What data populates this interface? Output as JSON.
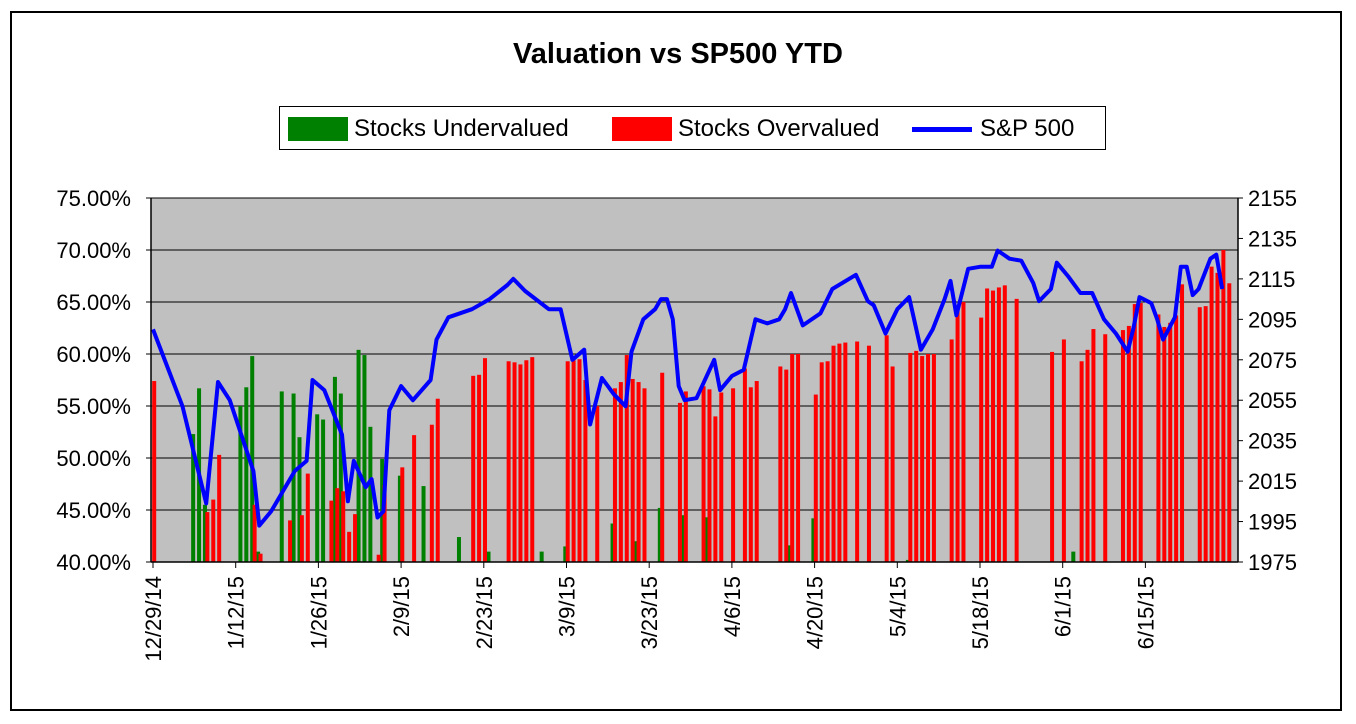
{
  "chart_data": {
    "type": "bar",
    "title": "Valuation vs SP500 YTD",
    "legend": {
      "position": "top",
      "items": [
        {
          "label": "Stocks Undervalued",
          "color": "#008000"
        },
        {
          "label": "Stocks Overvalued",
          "color": "#ff0000"
        },
        {
          "label": "S&P 500",
          "color": "#0000ff"
        }
      ]
    },
    "plot_background": "#c0c0c0",
    "grid": true,
    "y_left": {
      "ticks": [
        "40.00%",
        "45.00%",
        "50.00%",
        "55.00%",
        "60.00%",
        "65.00%",
        "70.00%",
        "75.00%"
      ],
      "range": [
        40,
        75
      ]
    },
    "y_right": {
      "ticks": [
        "1975",
        "1995",
        "2015",
        "2035",
        "2055",
        "2075",
        "2095",
        "2115",
        "2135",
        "2155"
      ],
      "range": [
        1975,
        2155
      ]
    },
    "x_axis": {
      "ticks": [
        "12/29/14",
        "1/12/15",
        "1/26/15",
        "2/9/15",
        "2/23/15",
        "3/9/15",
        "3/23/15",
        "4/6/15",
        "4/20/15",
        "5/4/15",
        "5/18/15",
        "6/1/15",
        "6/15/15"
      ],
      "start_date": "2014-12-29",
      "last_day": 183
    },
    "series": [
      {
        "name": "Stocks Undervalued",
        "color": "#008000",
        "points": [
          [
            7,
            52.3
          ],
          [
            8,
            56.7
          ],
          [
            9,
            45.5
          ],
          [
            15,
            55.0
          ],
          [
            16,
            56.8
          ],
          [
            17,
            59.8
          ],
          [
            18,
            41.0
          ],
          [
            22,
            56.4
          ],
          [
            24,
            56.2
          ],
          [
            25,
            52.0
          ],
          [
            28,
            54.2
          ],
          [
            29,
            53.7
          ],
          [
            31,
            57.8
          ],
          [
            32,
            56.2
          ],
          [
            35,
            60.4
          ],
          [
            36,
            59.9
          ],
          [
            37,
            53.0
          ],
          [
            39,
            49.9
          ],
          [
            42,
            48.3
          ],
          [
            46,
            47.3
          ],
          [
            52,
            42.4
          ],
          [
            57,
            41.0
          ],
          [
            66,
            41.0
          ],
          [
            70,
            41.5
          ],
          [
            78,
            43.7
          ],
          [
            82,
            42.0
          ],
          [
            86,
            45.2
          ],
          [
            90,
            44.5
          ],
          [
            94,
            44.3
          ],
          [
            108,
            41.6
          ],
          [
            112,
            44.2
          ],
          [
            128,
            40.2
          ],
          [
            156,
            41.0
          ]
        ]
      },
      {
        "name": "Stocks Overvalued",
        "color": "#ff0000",
        "points": [
          [
            0,
            57.4
          ],
          [
            9,
            44.8
          ],
          [
            10,
            46.0
          ],
          [
            11,
            50.3
          ],
          [
            17,
            45.5
          ],
          [
            18,
            40.8
          ],
          [
            23,
            44.0
          ],
          [
            25,
            44.5
          ],
          [
            26,
            48.5
          ],
          [
            30,
            45.9
          ],
          [
            31,
            47.1
          ],
          [
            32,
            46.8
          ],
          [
            33,
            42.9
          ],
          [
            34,
            44.6
          ],
          [
            38,
            40.7
          ],
          [
            39,
            47.4
          ],
          [
            42,
            49.1
          ],
          [
            44,
            52.2
          ],
          [
            47,
            53.2
          ],
          [
            48,
            55.7
          ],
          [
            54,
            57.9
          ],
          [
            55,
            58.0
          ],
          [
            56,
            59.6
          ],
          [
            60,
            59.3
          ],
          [
            61,
            59.2
          ],
          [
            62,
            59.0
          ],
          [
            63,
            59.4
          ],
          [
            64,
            59.7
          ],
          [
            70,
            59.3
          ],
          [
            71,
            59.4
          ],
          [
            72,
            59.5
          ],
          [
            73,
            57.5
          ],
          [
            75,
            55.0
          ],
          [
            78,
            56.7
          ],
          [
            79,
            57.3
          ],
          [
            80,
            59.9
          ],
          [
            81,
            57.6
          ],
          [
            82,
            57.3
          ],
          [
            83,
            56.7
          ],
          [
            86,
            58.2
          ],
          [
            89,
            55.3
          ],
          [
            90,
            56.4
          ],
          [
            93,
            56.9
          ],
          [
            94,
            56.6
          ],
          [
            95,
            54.0
          ],
          [
            96,
            56.3
          ],
          [
            98,
            56.7
          ],
          [
            100,
            58.6
          ],
          [
            101,
            56.8
          ],
          [
            102,
            57.4
          ],
          [
            106,
            58.8
          ],
          [
            107,
            58.5
          ],
          [
            108,
            60.0
          ],
          [
            109,
            60.0
          ],
          [
            112,
            56.1
          ],
          [
            113,
            59.2
          ],
          [
            114,
            59.3
          ],
          [
            115,
            60.8
          ],
          [
            116,
            61.0
          ],
          [
            117,
            61.1
          ],
          [
            119,
            61.2
          ],
          [
            121,
            60.8
          ],
          [
            124,
            61.8
          ],
          [
            125,
            58.8
          ],
          [
            128,
            60.1
          ],
          [
            129,
            60.3
          ],
          [
            130,
            59.8
          ],
          [
            131,
            60.0
          ],
          [
            132,
            60.0
          ],
          [
            135,
            61.4
          ],
          [
            136,
            64.6
          ],
          [
            137,
            65.0
          ],
          [
            140,
            63.5
          ],
          [
            141,
            66.3
          ],
          [
            142,
            66.1
          ],
          [
            143,
            66.4
          ],
          [
            144,
            66.6
          ],
          [
            146,
            65.3
          ],
          [
            152,
            60.2
          ],
          [
            154,
            61.4
          ],
          [
            157,
            59.3
          ],
          [
            158,
            60.4
          ],
          [
            159,
            62.4
          ],
          [
            161,
            61.9
          ],
          [
            164,
            62.3
          ],
          [
            165,
            62.7
          ],
          [
            166,
            64.8
          ],
          [
            167,
            64.9
          ],
          [
            170,
            63.8
          ],
          [
            171,
            62.6
          ],
          [
            172,
            63.0
          ],
          [
            173,
            63.7
          ],
          [
            174,
            66.7
          ],
          [
            177,
            64.5
          ],
          [
            178,
            64.6
          ],
          [
            179,
            68.4
          ],
          [
            180,
            67.8
          ],
          [
            181,
            70.0
          ],
          [
            182,
            66.8
          ]
        ]
      },
      {
        "name": "S&P 500",
        "color": "#0000ff",
        "points": [
          [
            0,
            2090
          ],
          [
            5,
            2052
          ],
          [
            9,
            2004
          ],
          [
            11,
            2064
          ],
          [
            13,
            2055
          ],
          [
            17,
            2020
          ],
          [
            18,
            1993
          ],
          [
            20,
            2000
          ],
          [
            24,
            2020
          ],
          [
            26,
            2025
          ],
          [
            27,
            2065
          ],
          [
            29,
            2060
          ],
          [
            32,
            2038
          ],
          [
            33,
            2005
          ],
          [
            34,
            2025
          ],
          [
            36,
            2012
          ],
          [
            37,
            2016
          ],
          [
            38,
            1997
          ],
          [
            39,
            2000
          ],
          [
            40,
            2050
          ],
          [
            42,
            2062
          ],
          [
            44,
            2055
          ],
          [
            47,
            2065
          ],
          [
            48,
            2085
          ],
          [
            50,
            2096
          ],
          [
            54,
            2100
          ],
          [
            57,
            2105
          ],
          [
            60,
            2112
          ],
          [
            61,
            2115
          ],
          [
            63,
            2109
          ],
          [
            67,
            2100
          ],
          [
            69,
            2100
          ],
          [
            71,
            2075
          ],
          [
            73,
            2080
          ],
          [
            74,
            2043
          ],
          [
            76,
            2066
          ],
          [
            78,
            2058
          ],
          [
            80,
            2052
          ],
          [
            81,
            2079
          ],
          [
            83,
            2095
          ],
          [
            85,
            2100
          ],
          [
            86,
            2105
          ],
          [
            87,
            2105
          ],
          [
            88,
            2095
          ],
          [
            89,
            2062
          ],
          [
            90,
            2055
          ],
          [
            92,
            2056
          ],
          [
            95,
            2075
          ],
          [
            96,
            2060
          ],
          [
            98,
            2067
          ],
          [
            100,
            2070
          ],
          [
            102,
            2095
          ],
          [
            104,
            2093
          ],
          [
            106,
            2095
          ],
          [
            107,
            2100
          ],
          [
            108,
            2108
          ],
          [
            110,
            2092
          ],
          [
            111,
            2094
          ],
          [
            113,
            2098
          ],
          [
            115,
            2110
          ],
          [
            119,
            2117
          ],
          [
            121,
            2104
          ],
          [
            122,
            2102
          ],
          [
            124,
            2088
          ],
          [
            126,
            2100
          ],
          [
            128,
            2106
          ],
          [
            130,
            2080
          ],
          [
            132,
            2090
          ],
          [
            134,
            2105
          ],
          [
            135,
            2114
          ],
          [
            136,
            2097
          ],
          [
            138,
            2120
          ],
          [
            140,
            2121
          ],
          [
            142,
            2121
          ],
          [
            143,
            2129
          ],
          [
            144,
            2127
          ],
          [
            145,
            2125
          ],
          [
            147,
            2124
          ],
          [
            149,
            2113
          ],
          [
            150,
            2104
          ],
          [
            152,
            2110
          ],
          [
            153,
            2123
          ],
          [
            155,
            2116
          ],
          [
            157,
            2108
          ],
          [
            159,
            2108
          ],
          [
            161,
            2095
          ],
          [
            163,
            2088
          ],
          [
            165,
            2079
          ],
          [
            166,
            2091
          ],
          [
            167,
            2106
          ],
          [
            169,
            2103
          ],
          [
            170,
            2095
          ],
          [
            171,
            2085
          ],
          [
            173,
            2096
          ],
          [
            174,
            2121
          ],
          [
            175,
            2121
          ],
          [
            176,
            2107
          ],
          [
            177,
            2110
          ],
          [
            179,
            2125
          ],
          [
            180,
            2127
          ],
          [
            181,
            2110
          ]
        ]
      }
    ]
  }
}
